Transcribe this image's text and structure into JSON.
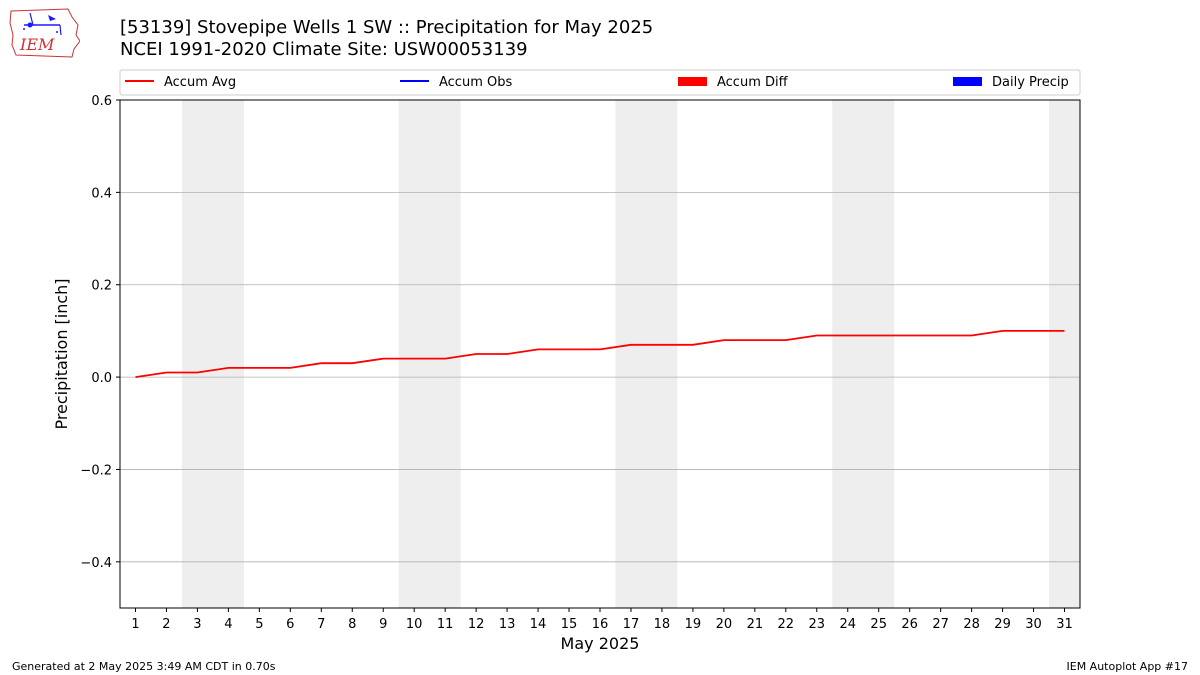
{
  "header": {
    "title_line1": "[53139] Stovepipe Wells 1 SW :: Precipitation for May 2025",
    "title_line2": "NCEI 1991-2020 Climate Site: USW00053139",
    "logo_text": "IEM"
  },
  "footer": {
    "left": "Generated at 2 May 2025 3:49 AM CDT in 0.70s",
    "right": "IEM Autoplot App #17"
  },
  "chart_data": {
    "type": "line",
    "xlabel": "May 2025",
    "ylabel": "Precipitation [inch]",
    "xlim": [
      0.5,
      31.5
    ],
    "ylim": [
      -0.5,
      0.6
    ],
    "yticks": [
      -0.4,
      -0.2,
      0.0,
      0.2,
      0.4,
      0.6
    ],
    "ytick_labels": [
      "−0.4",
      "−0.2",
      "0.0",
      "0.2",
      "0.4",
      "0.6"
    ],
    "xticks": [
      1,
      2,
      3,
      4,
      5,
      6,
      7,
      8,
      9,
      10,
      11,
      12,
      13,
      14,
      15,
      16,
      17,
      18,
      19,
      20,
      21,
      22,
      23,
      24,
      25,
      26,
      27,
      28,
      29,
      30,
      31
    ],
    "grid": "horizontal",
    "weekend_shading": [
      [
        3,
        4
      ],
      [
        10,
        11
      ],
      [
        17,
        18
      ],
      [
        24,
        25
      ],
      [
        31,
        31
      ]
    ],
    "legend": {
      "placement": "top",
      "entries": [
        {
          "label": "Accum Avg",
          "kind": "line",
          "color": "#ff0000"
        },
        {
          "label": "Accum Obs",
          "kind": "line",
          "color": "#0000ff"
        },
        {
          "label": "Accum Diff",
          "kind": "bar",
          "color": "#ff0000"
        },
        {
          "label": "Daily Precip",
          "kind": "bar",
          "color": "#0000ff"
        }
      ]
    },
    "series": [
      {
        "name": "Accum Avg",
        "color": "#ff0000",
        "x": [
          1,
          2,
          3,
          4,
          5,
          6,
          7,
          8,
          9,
          10,
          11,
          12,
          13,
          14,
          15,
          16,
          17,
          18,
          19,
          20,
          21,
          22,
          23,
          24,
          25,
          26,
          27,
          28,
          29,
          30,
          31
        ],
        "values": [
          0.0,
          0.01,
          0.01,
          0.02,
          0.02,
          0.02,
          0.03,
          0.03,
          0.04,
          0.04,
          0.04,
          0.05,
          0.05,
          0.06,
          0.06,
          0.06,
          0.07,
          0.07,
          0.07,
          0.08,
          0.08,
          0.08,
          0.09,
          0.09,
          0.09,
          0.09,
          0.09,
          0.09,
          0.1,
          0.1,
          0.1
        ]
      }
    ]
  }
}
